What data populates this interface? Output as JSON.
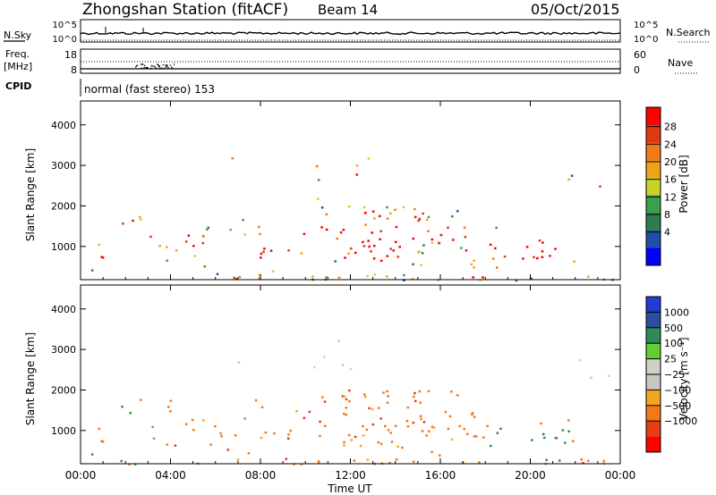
{
  "header": {
    "station": "Zhongshan Station (fitACF)",
    "beam": "Beam 14",
    "date": "05/Oct/2015",
    "mode_label": "normal (fast stereo) 153"
  },
  "left_labels": {
    "nsky": "N.Sky",
    "freq": "Freq.",
    "freq_unit": "[MHz]",
    "cpid": "CPID"
  },
  "right_labels": {
    "nsearch": "N.Search",
    "nave": "Nave"
  },
  "noise_ticks_left": [
    "10^5",
    "10^0"
  ],
  "noise_ticks_right": [
    "10^5",
    "10^0"
  ],
  "freq_ticks_left": [
    "18",
    "8"
  ],
  "freq_ticks_right": [
    "60",
    "0"
  ],
  "colors": {
    "scale_power": [
      "#0000ff",
      "#1f4fa8",
      "#2e7d4f",
      "#3aa14a",
      "#c8d226",
      "#f2a21a",
      "#f07a1a",
      "#e03a14",
      "#ff0000"
    ],
    "scale_velocity": [
      "#ff0000",
      "#e83c14",
      "#f2781a",
      "#f4a623",
      "#c8c8c0",
      "#cfd0c8",
      "#66cc33",
      "#2e8b57",
      "#2a4f9c",
      "#1f3fd0"
    ]
  },
  "chart_data": [
    {
      "type": "heatmap",
      "panel": "power",
      "ylabel": "Slant Range [km]",
      "yticks": [
        "1000",
        "2000",
        "3000",
        "4000"
      ],
      "ylim": [
        180,
        4590
      ],
      "xlabel": "Time UT",
      "xticks": [
        "00:00",
        "04:00",
        "08:00",
        "12:00",
        "16:00",
        "20:00",
        "00:00"
      ],
      "xlim": [
        0,
        24
      ],
      "colorbar_label": "Power [dB]",
      "colorbar_ticks": [
        "4",
        "8",
        "12",
        "16",
        "20",
        "24",
        "28"
      ]
    },
    {
      "type": "heatmap",
      "panel": "velocity",
      "ylabel": "Slant Range [km]",
      "yticks": [
        "1000",
        "2000",
        "3000",
        "4000"
      ],
      "ylim": [
        180,
        4590
      ],
      "xlabel": "Time UT",
      "xticks": [
        "00:00",
        "04:00",
        "08:00",
        "12:00",
        "16:00",
        "20:00",
        "00:00"
      ],
      "xlim": [
        0,
        24
      ],
      "colorbar_label": "Velocity [m s⁻¹]",
      "colorbar_ticks": [
        "1000",
        "500",
        "100",
        "25",
        "−25",
        "−100",
        "−500",
        "−1000"
      ]
    }
  ],
  "axis_title": "Time UT"
}
